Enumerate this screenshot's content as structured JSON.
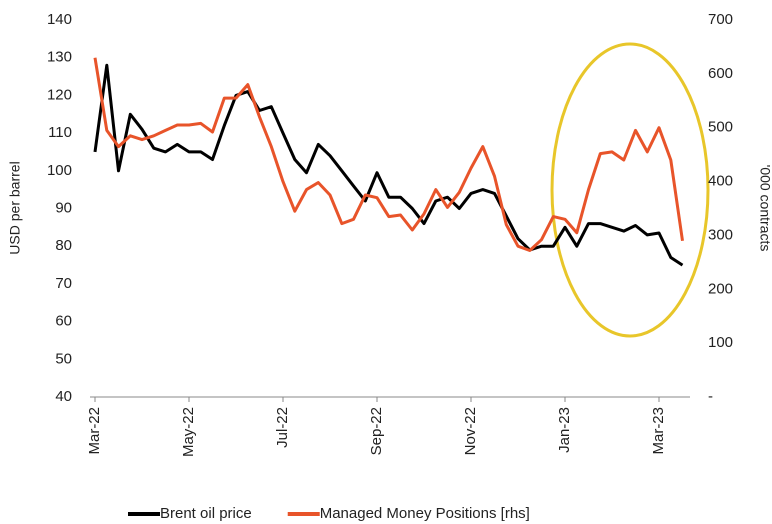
{
  "chart_data": {
    "type": "line",
    "categories": [
      "Mar-22",
      null,
      null,
      null,
      null,
      null,
      null,
      null,
      "May-22",
      null,
      null,
      null,
      null,
      null,
      null,
      null,
      "Jul-22",
      null,
      null,
      null,
      null,
      null,
      null,
      null,
      "Sep-22",
      null,
      null,
      null,
      null,
      null,
      null,
      null,
      "Nov-22",
      null,
      null,
      null,
      null,
      null,
      null,
      null,
      "Jan-23",
      null,
      null,
      null,
      null,
      null,
      null,
      null,
      "Mar-23",
      null,
      null
    ],
    "series": [
      {
        "name": "Brent oil price",
        "color": "#000000",
        "values": [
          105,
          128,
          100,
          115,
          111,
          106,
          105,
          107,
          105,
          105,
          103,
          112,
          120,
          121,
          116,
          117,
          110,
          103,
          99.5,
          107,
          104,
          100,
          96,
          92,
          99.5,
          93,
          93,
          90,
          86,
          92,
          93,
          90,
          94,
          95,
          94,
          88,
          82,
          79,
          80,
          80,
          85,
          80,
          86,
          86,
          85,
          84,
          85.5,
          83,
          83.5,
          77,
          75
        ]
      },
      {
        "name": "Managed Money Positions [rhs]",
        "color": "#e8542a",
        "axis": "y2",
        "values": [
          630,
          495,
          465,
          485,
          478,
          485,
          495,
          505,
          505,
          508,
          492,
          555,
          555,
          580,
          520,
          465,
          400,
          345,
          385,
          398,
          375,
          322,
          330,
          375,
          370,
          335,
          338,
          310,
          340,
          385,
          352,
          380,
          425,
          465,
          410,
          320,
          280,
          272,
          292,
          335,
          330,
          305,
          385,
          452,
          455,
          440,
          495,
          455,
          500,
          440,
          290
        ]
      }
    ],
    "ylabel": "USD per barrel",
    "y2label": "'000 contracts",
    "ylim": [
      40,
      140
    ],
    "yticks": [
      40,
      50,
      60,
      70,
      80,
      90,
      100,
      110,
      120,
      130,
      140
    ],
    "y2lim": [
      0,
      700
    ],
    "y2ticks": [
      {
        "value": 0,
        "label": "-"
      },
      100,
      200,
      300,
      400,
      500,
      600,
      700
    ],
    "grid": false,
    "legend": "bottom"
  }
}
